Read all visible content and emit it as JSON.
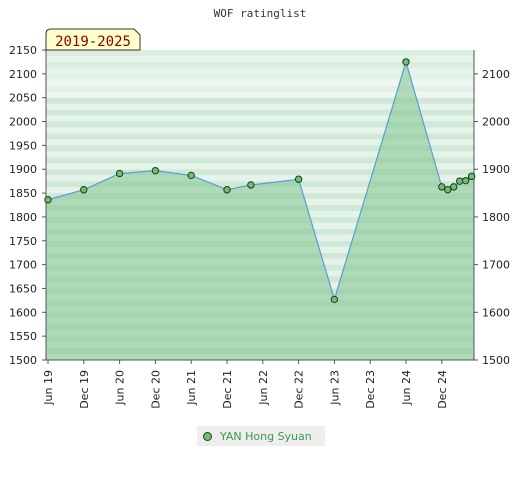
{
  "chart_data": {
    "type": "area",
    "title": "WOF ratinglist",
    "badge": "2019-2025",
    "ylim": [
      1500,
      2150
    ],
    "y_ticks_left": [
      1500,
      1550,
      1600,
      1650,
      1700,
      1750,
      1800,
      1850,
      1900,
      1950,
      2000,
      2050,
      2100,
      2150
    ],
    "y_ticks_right": [
      1500,
      1600,
      1700,
      1800,
      1900,
      2000,
      2100
    ],
    "x_ticks": [
      "Jun 19",
      "Dec 19",
      "Jun 20",
      "Dec 20",
      "Jun 21",
      "Dec 21",
      "Jun 22",
      "Dec 22",
      "Jun 23",
      "Dec 23",
      "Jun 24",
      "Dec 24"
    ],
    "grid": true,
    "legend_position": "bottom",
    "series": [
      {
        "name": "YAN Hong Syuan",
        "color": "#6fbf73",
        "line_color": "#5b9bd5",
        "points": [
          {
            "x": "2019-06",
            "y": 1836
          },
          {
            "x": "2019-12",
            "y": 1857
          },
          {
            "x": "2020-06",
            "y": 1891
          },
          {
            "x": "2020-12",
            "y": 1897
          },
          {
            "x": "2021-06",
            "y": 1887
          },
          {
            "x": "2021-12",
            "y": 1857
          },
          {
            "x": "2022-04",
            "y": 1867
          },
          {
            "x": "2022-12",
            "y": 1879
          },
          {
            "x": "2023-06",
            "y": 1627
          },
          {
            "x": "2024-06",
            "y": 2125
          },
          {
            "x": "2024-12",
            "y": 1863
          },
          {
            "x": "2025-01",
            "y": 1857
          },
          {
            "x": "2025-02",
            "y": 1863
          },
          {
            "x": "2025-03",
            "y": 1875
          },
          {
            "x": "2025-04",
            "y": 1876
          },
          {
            "x": "2025-05",
            "y": 1885
          }
        ]
      }
    ]
  }
}
